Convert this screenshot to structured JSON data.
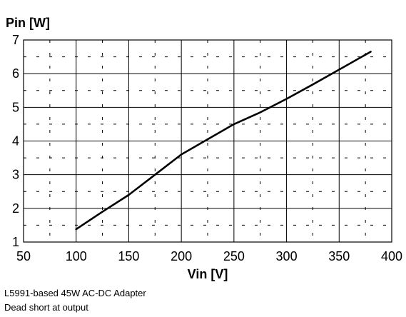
{
  "chart_data": {
    "type": "line",
    "ylabel": "Pin [W]",
    "xlabel": "Vin [V]",
    "xlim": [
      50,
      400
    ],
    "ylim": [
      1,
      7
    ],
    "xticks": [
      50,
      100,
      150,
      200,
      250,
      300,
      350,
      400
    ],
    "yticks": [
      1,
      2,
      3,
      4,
      5,
      6,
      7
    ],
    "grid": true,
    "series": [
      {
        "x": [
          100,
          125,
          150,
          175,
          200,
          225,
          250,
          275,
          300,
          325,
          350,
          380
        ],
        "y": [
          1.38,
          1.9,
          2.4,
          3.0,
          3.6,
          4.05,
          4.5,
          4.85,
          5.25,
          5.68,
          6.12,
          6.65
        ]
      }
    ]
  },
  "captions": {
    "line1": "L5991-based 45W AC-DC Adapter",
    "line2": "Dead short at output"
  }
}
